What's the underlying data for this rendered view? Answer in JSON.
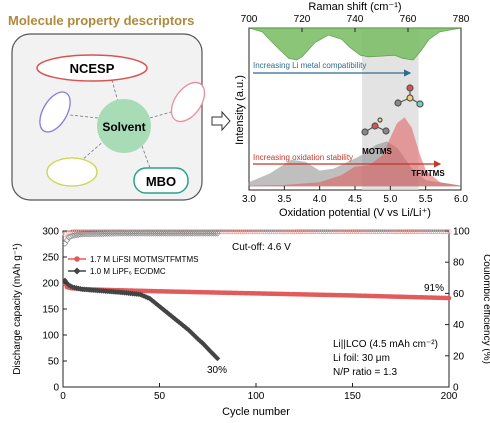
{
  "left_panel": {
    "title": "Molecule property descriptors",
    "center": "Solvent",
    "descriptors": [
      "NCESP",
      "MBO"
    ]
  },
  "colors": {
    "title_gold": "#b08a3a",
    "green": "#7fbf6a",
    "red": "#e25b5b",
    "gray": "#8c8c8c",
    "blue_text": "#2f6d8e",
    "red_text": "#c0392b",
    "highlight": "#d9d9d9"
  },
  "chart_data": [
    {
      "type": "area",
      "panel": "top-right",
      "top_axis": {
        "label": "Raman shift (cm⁻¹)",
        "ticks": [
          "700",
          "720",
          "740",
          "760",
          "780"
        ],
        "lim": [
          700,
          780
        ]
      },
      "bottom_axis": {
        "label": "Oxidation potential (V vs Li/Li⁺)",
        "ticks": [
          "3.0",
          "3.5",
          "4.0",
          "4.5",
          "5.0",
          "5.5",
          "6.0"
        ],
        "lim": [
          3.0,
          6.0
        ]
      },
      "ylabel": "Intensity (a.u.)",
      "annotations": {
        "li_metal": "Increasing Li metal compatibility",
        "oxidation": "Increasing oxidation stability",
        "motms": "MOTMS",
        "tfmtms": "TFMTMS"
      },
      "highlight_range": [
        4.6,
        5.4
      ],
      "raman_series": {
        "x": [
          700,
          705,
          710,
          715,
          718,
          720,
          725,
          730,
          735,
          738,
          742,
          745,
          750,
          755,
          758,
          762,
          765,
          768,
          772,
          780
        ],
        "y": [
          0,
          0.12,
          0.55,
          0.95,
          1.0,
          0.9,
          0.45,
          0.22,
          0.35,
          0.6,
          0.85,
          0.9,
          0.88,
          0.85,
          0.95,
          1.0,
          0.7,
          0.35,
          0.12,
          0
        ]
      },
      "series": [
        {
          "name": "MOTMS",
          "x": [
            3.0,
            3.3,
            3.6,
            3.8,
            4.0,
            4.2,
            4.4,
            4.6,
            4.8,
            4.95,
            5.1,
            5.3,
            5.5,
            6.0
          ],
          "y": [
            0.05,
            0.18,
            0.38,
            0.35,
            0.22,
            0.25,
            0.35,
            0.45,
            0.6,
            0.65,
            0.55,
            0.25,
            0.08,
            0
          ]
        },
        {
          "name": "TFMTMS",
          "x": [
            3.0,
            3.5,
            4.0,
            4.3,
            4.5,
            4.7,
            4.9,
            5.0,
            5.1,
            5.2,
            5.3,
            5.4,
            5.5,
            5.7,
            6.0
          ],
          "y": [
            0,
            0.01,
            0.05,
            0.15,
            0.28,
            0.3,
            0.45,
            0.7,
            0.92,
            1.0,
            0.85,
            0.5,
            0.22,
            0.05,
            0
          ]
        }
      ]
    },
    {
      "type": "scatter",
      "panel": "bottom",
      "xlabel": "Cycle number",
      "ylabel": "Discharge capacity (mAh g⁻¹)",
      "y2label": "Coulombic efficiency (%)",
      "xlim": [
        0,
        200
      ],
      "ylim": [
        0,
        300
      ],
      "y2lim": [
        0,
        100
      ],
      "xticks": [
        "0",
        "50",
        "100",
        "150",
        "200"
      ],
      "yticks": [
        "0",
        "50",
        "100",
        "150",
        "200",
        "250",
        "300"
      ],
      "y2ticks": [
        "0",
        "20",
        "40",
        "60",
        "80",
        "100"
      ],
      "legend": [
        "1.7 M LiFSI MOTMS/TFMTMS",
        "1.0 M LiPF₆ EC/DMC"
      ],
      "cutoff": "Cut-off: 4.6 V",
      "cell_info": [
        "Li||LCO (4.5 mAh cm⁻²)",
        "Li foil: 30 μm",
        "N/P ratio = 1.3"
      ],
      "retention_labels": [
        "91%",
        "30%"
      ],
      "red_capacity": {
        "x": [
          1,
          2,
          4,
          10,
          50,
          100,
          150,
          200
        ],
        "y": [
          198,
          192,
          190,
          188,
          184,
          180,
          176,
          171
        ]
      },
      "black_capacity": {
        "x": [
          1,
          2,
          3,
          5,
          10,
          20,
          30,
          40,
          45,
          50,
          55,
          60,
          65,
          70,
          73,
          76,
          80
        ],
        "y": [
          205,
          200,
          196,
          192,
          188,
          185,
          182,
          178,
          170,
          155,
          140,
          125,
          110,
          92,
          82,
          70,
          55
        ]
      },
      "red_ce": {
        "x": [
          1,
          5,
          200
        ],
        "y": [
          98,
          99.5,
          99.6
        ]
      },
      "black_ce": {
        "x": [
          1,
          2,
          3,
          5,
          10,
          30,
          80
        ],
        "y": [
          92,
          94,
          96,
          97,
          98,
          98.5,
          98.5
        ]
      }
    }
  ]
}
